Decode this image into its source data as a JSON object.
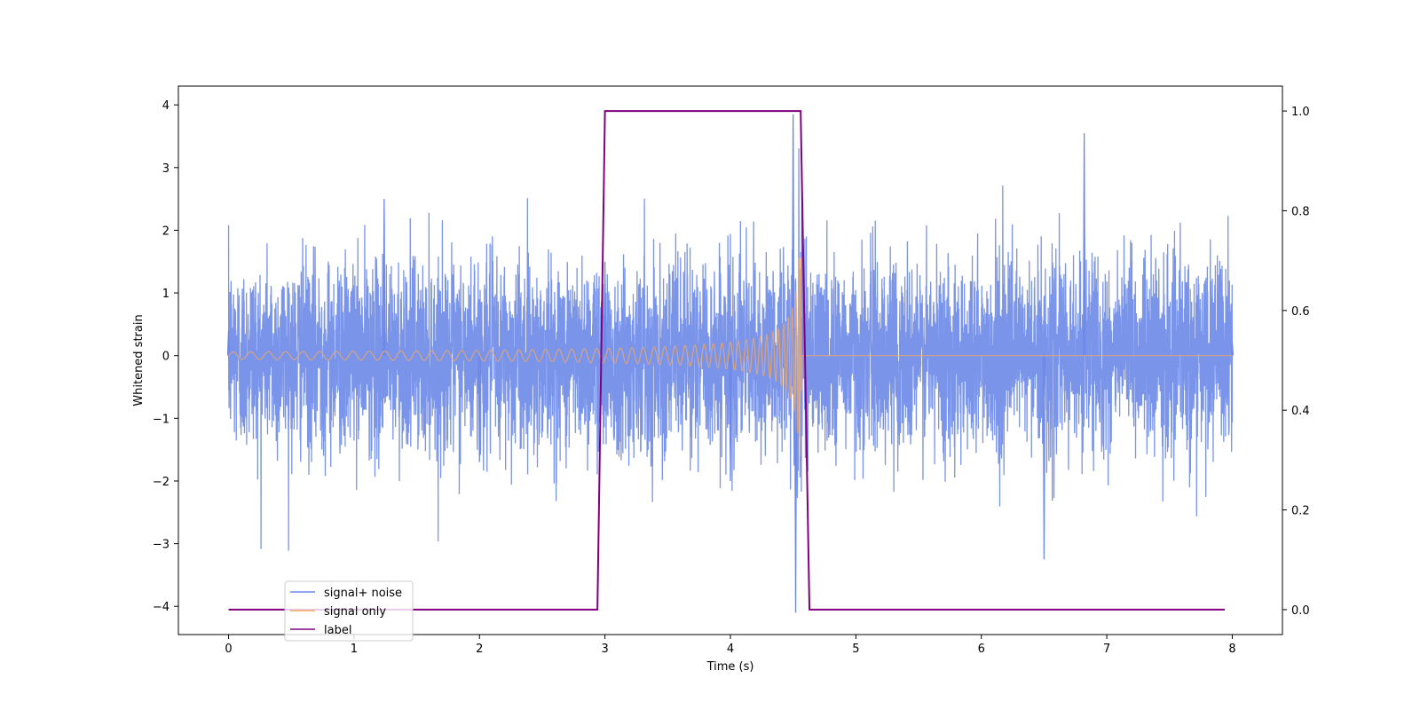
{
  "chart_data": {
    "type": "line",
    "title": "",
    "xlabel": "Time (s)",
    "ylabel": "Whitened strain",
    "y2label": "",
    "xlim": [
      -0.4,
      8.4
    ],
    "ylim": [
      -4.45,
      4.3
    ],
    "y2lim": [
      -0.05,
      1.05
    ],
    "xticks": [
      "0",
      "1",
      "2",
      "3",
      "4",
      "5",
      "6",
      "7",
      "8"
    ],
    "yticks": [
      "−4",
      "−3",
      "−2",
      "−1",
      "0",
      "1",
      "2",
      "3",
      "4"
    ],
    "y2ticks": [
      "0.0",
      "0.2",
      "0.4",
      "0.6",
      "0.8",
      "1.0"
    ],
    "grid": false,
    "legend_position": "lower-left",
    "series": [
      {
        "name": "signal+ noise",
        "axis": "left",
        "color": "#6b88e8",
        "description_points": {
          "x": [
            0,
            1.24,
            2.0,
            3.0,
            4.0,
            4.5,
            4.52,
            4.57,
            6.5,
            6.82,
            8.0
          ],
          "y": [
            0.4,
            2.5,
            -1.7,
            1.5,
            -2.0,
            3.85,
            -4.1,
            2.6,
            -3.25,
            3.55,
            0.2
          ]
        },
        "envelope": {
          "noise_sigma": 0.75,
          "max_abs": 4.1
        }
      },
      {
        "name": "signal only",
        "axis": "left",
        "color": "#f5a860",
        "chirp": {
          "start_time": 0,
          "merger_time": 4.57,
          "end_time": 8,
          "amplitude_at_start": 0.06,
          "amplitude_at_merger": 1.6,
          "post_merger_value": 0
        }
      },
      {
        "name": "label",
        "axis": "right",
        "color": "#800080",
        "x": [
          0,
          2.94,
          3.0,
          4.56,
          4.63,
          7.94
        ],
        "y": [
          0,
          0,
          1,
          1,
          0,
          0
        ]
      }
    ]
  },
  "legend": {
    "items": [
      {
        "label": "signal+ noise",
        "color": "#6b88e8"
      },
      {
        "label": "signal only",
        "color": "#f5a860"
      },
      {
        "label": "label",
        "color": "#800080"
      }
    ]
  }
}
